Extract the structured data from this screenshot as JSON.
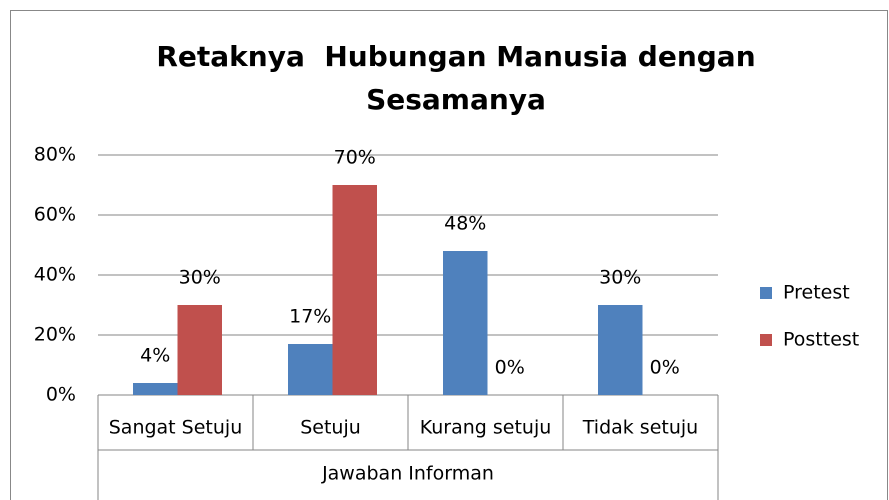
{
  "chart_data": {
    "type": "bar",
    "title": [
      "Retaknya  Hubungan Manusia dengan",
      "Sesamanya"
    ],
    "x_label": "Jawaban Informan",
    "categories": [
      "Sangat Setuju",
      "Setuju",
      "Kurang setuju",
      "Tidak setuju"
    ],
    "series": [
      {
        "name": "Pretest",
        "color": "#4f81bd",
        "values": [
          4,
          17,
          48,
          30
        ],
        "value_labels": [
          "4%",
          "17%",
          "48%",
          "30%"
        ]
      },
      {
        "name": "Posttest",
        "color": "#c0504d",
        "values": [
          30,
          70,
          0,
          0
        ],
        "value_labels": [
          "30%",
          "70%",
          "0%",
          "0%"
        ]
      }
    ],
    "ylim": [
      0,
      80
    ],
    "yticks": [
      {
        "value": 0,
        "label": "0%"
      },
      {
        "value": 20,
        "label": "20%"
      },
      {
        "value": 40,
        "label": "40%"
      },
      {
        "value": 60,
        "label": "60%"
      },
      {
        "value": 80,
        "label": "80%"
      }
    ],
    "grid": true,
    "legend": "right"
  }
}
